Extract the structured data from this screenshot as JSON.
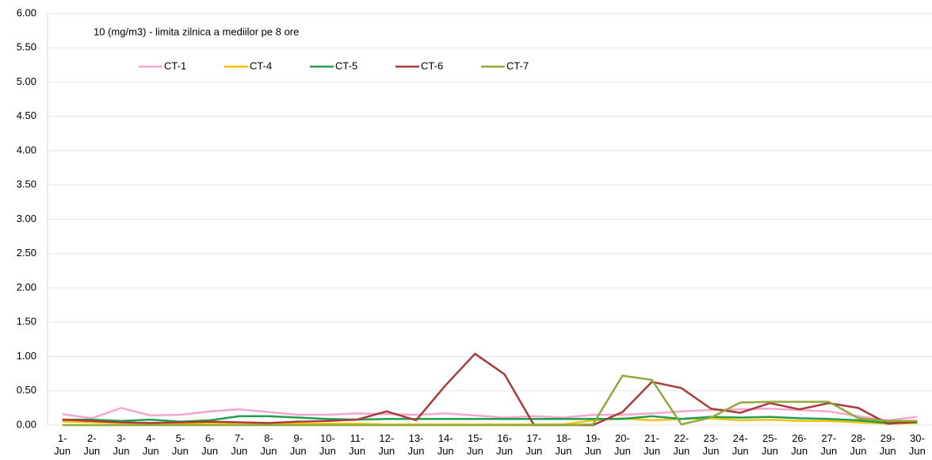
{
  "chart_data": {
    "type": "line",
    "annotation": "10 (mg/m3) - limita zilnica  a mediilor pe 8 ore",
    "categories": [
      "1- Jun",
      "2- Jun",
      "3- Jun",
      "4- Jun",
      "5- Jun",
      "6- Jun",
      "7- Jun",
      "8- Jun",
      "9- Jun",
      "10- Jun",
      "11- Jun",
      "12- Jun",
      "13- Jun",
      "14- Jun",
      "15- Jun",
      "16- Jun",
      "17- Jun",
      "18- Jun",
      "19- Jun",
      "20- Jun",
      "21- Jun",
      "22- Jun",
      "23- Jun",
      "24- Jun",
      "25- Jun",
      "26- Jun",
      "27- Jun",
      "28- Jun",
      "29- Jun",
      "30- Jun"
    ],
    "series": [
      {
        "name": "CT-1",
        "color": "#f4a6cc",
        "values": [
          0.16,
          0.1,
          0.25,
          0.14,
          0.15,
          0.2,
          0.23,
          0.19,
          0.15,
          0.15,
          0.17,
          0.16,
          0.15,
          0.17,
          0.14,
          0.11,
          0.13,
          0.11,
          0.15,
          0.15,
          0.17,
          0.2,
          0.22,
          0.23,
          0.24,
          0.22,
          0.2,
          0.13,
          0.07,
          0.12
        ]
      },
      {
        "name": "CT-4",
        "color": "#ffc000",
        "values": [
          0.05,
          0.04,
          0.03,
          0.02,
          0.02,
          0.03,
          0.03,
          0.02,
          0.02,
          0.02,
          0.02,
          0.01,
          0.01,
          0.01,
          0.01,
          0.01,
          0.01,
          0.01,
          0.07,
          0.1,
          0.07,
          0.09,
          0.1,
          0.07,
          0.08,
          0.06,
          0.06,
          0.04,
          0.02,
          0.03
        ]
      },
      {
        "name": "CT-5",
        "color": "#1fa050",
        "values": [
          0.08,
          0.08,
          0.06,
          0.08,
          0.05,
          0.07,
          0.13,
          0.13,
          0.11,
          0.09,
          0.08,
          0.09,
          0.09,
          0.09,
          0.09,
          0.09,
          0.09,
          0.09,
          0.09,
          0.09,
          0.13,
          0.09,
          0.12,
          0.11,
          0.12,
          0.1,
          0.09,
          0.07,
          0.03,
          0.04
        ]
      },
      {
        "name": "CT-6",
        "color": "#a83c3c",
        "values": [
          0.08,
          0.06,
          0.04,
          0.03,
          0.04,
          0.05,
          0.04,
          0.03,
          0.05,
          0.06,
          0.08,
          0.2,
          0.07,
          0.58,
          1.04,
          0.74,
          0,
          0,
          0,
          0.19,
          0.63,
          0.54,
          0.24,
          0.18,
          0.32,
          0.23,
          0.32,
          0.25,
          0.02,
          0.05
        ]
      },
      {
        "name": "CT-7",
        "color": "#8faa3c",
        "values": [
          0,
          0,
          0,
          0,
          0,
          0,
          0,
          0,
          0,
          0,
          0,
          0,
          0,
          0,
          0,
          0,
          0,
          0,
          0.01,
          0.72,
          0.66,
          0.01,
          0.11,
          0.33,
          0.34,
          0.34,
          0.34,
          0.1,
          0.06,
          0.06
        ]
      }
    ],
    "ylim": [
      0,
      6
    ],
    "yticks": [
      {
        "value": 0,
        "label": "0.00"
      },
      {
        "value": 0.5,
        "label": "0.50"
      },
      {
        "value": 1,
        "label": "1.00"
      },
      {
        "value": 1.5,
        "label": "1.50"
      },
      {
        "value": 2,
        "label": "2.00"
      },
      {
        "value": 2.5,
        "label": "2.50"
      },
      {
        "value": 3,
        "label": "3.00"
      },
      {
        "value": 3.5,
        "label": "3.50"
      },
      {
        "value": 4,
        "label": "4.00"
      },
      {
        "value": 4.5,
        "label": "4.50"
      },
      {
        "value": 5,
        "label": "5.00"
      },
      {
        "value": 5.5,
        "label": "5.50"
      },
      {
        "value": 6,
        "label": "6.00"
      }
    ],
    "grid": true,
    "legend": "top"
  }
}
